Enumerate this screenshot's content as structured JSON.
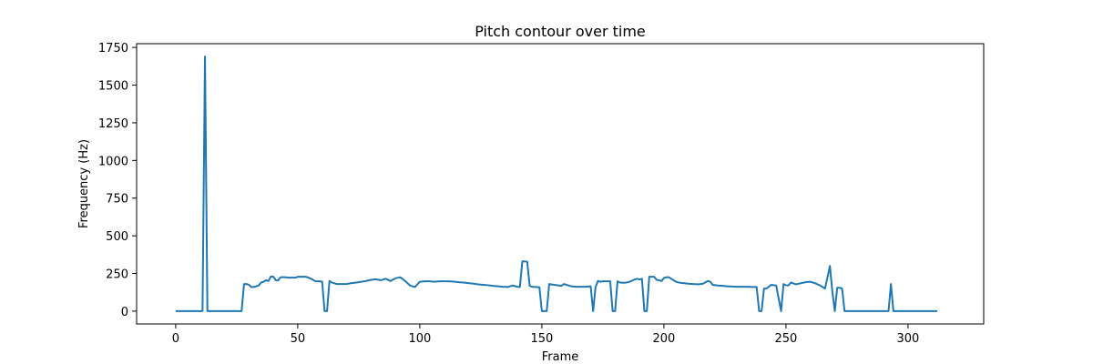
{
  "chart_data": {
    "type": "line",
    "title": "Pitch contour over time",
    "xlabel": "Frame",
    "ylabel": "Frequency (Hz)",
    "xlim": [
      -16,
      331
    ],
    "ylim": [
      -85,
      1775
    ],
    "xticks": [
      0,
      50,
      100,
      150,
      200,
      250,
      300
    ],
    "yticks": [
      0,
      250,
      500,
      750,
      1000,
      1250,
      1500,
      1750
    ],
    "grid": false,
    "series": [
      {
        "color": "#1f77b4",
        "x": [
          0,
          11,
          12,
          13,
          14,
          27,
          28,
          29,
          30,
          31,
          32,
          33,
          34,
          35,
          36,
          37,
          38,
          39,
          40,
          41,
          42,
          43,
          44,
          45,
          46,
          47,
          48,
          49,
          50,
          51,
          52,
          53,
          54,
          55,
          56,
          57,
          58,
          59,
          60,
          61,
          62,
          63,
          64,
          65,
          66,
          67,
          68,
          69,
          70,
          72,
          74,
          76,
          78,
          80,
          82,
          84,
          86,
          88,
          90,
          92,
          94,
          96,
          98,
          100,
          102,
          104,
          106,
          108,
          110,
          112,
          114,
          116,
          118,
          120,
          122,
          124,
          126,
          128,
          130,
          132,
          134,
          136,
          138,
          140,
          141,
          142,
          143,
          144,
          145,
          146,
          147,
          148,
          149,
          150,
          151,
          152,
          153,
          155,
          157,
          158,
          159,
          160,
          162,
          164,
          166,
          168,
          170,
          171,
          172,
          173,
          174,
          175,
          176,
          178,
          179,
          180,
          181,
          182,
          184,
          186,
          188,
          189,
          190,
          191,
          192,
          193,
          194,
          195,
          196,
          197,
          198,
          199,
          200,
          201,
          202,
          203,
          204,
          205,
          206,
          208,
          210,
          212,
          214,
          216,
          218,
          219,
          220,
          222,
          224,
          226,
          228,
          230,
          232,
          234,
          236,
          238,
          239,
          240,
          241,
          242,
          244,
          246,
          248,
          249,
          250,
          251,
          252,
          254,
          256,
          258,
          260,
          262,
          264,
          266,
          268,
          269,
          270,
          271,
          272,
          273,
          274,
          275,
          280,
          290,
          292,
          293,
          294,
          300,
          312
        ],
        "y": [
          0,
          0,
          1690,
          0,
          0,
          0,
          180,
          180,
          175,
          160,
          160,
          165,
          170,
          190,
          195,
          205,
          200,
          230,
          228,
          205,
          205,
          225,
          225,
          225,
          222,
          222,
          222,
          222,
          228,
          228,
          228,
          228,
          225,
          218,
          210,
          200,
          198,
          198,
          196,
          0,
          0,
          200,
          190,
          185,
          180,
          180,
          180,
          180,
          180,
          186,
          190,
          195,
          200,
          208,
          212,
          205,
          215,
          200,
          218,
          225,
          200,
          170,
          160,
          195,
          198,
          198,
          195,
          198,
          198,
          198,
          196,
          192,
          190,
          186,
          182,
          178,
          175,
          172,
          168,
          165,
          162,
          160,
          170,
          162,
          160,
          330,
          330,
          328,
          168,
          162,
          160,
          160,
          158,
          0,
          0,
          0,
          180,
          175,
          170,
          168,
          180,
          175,
          165,
          162,
          162,
          162,
          165,
          0,
          160,
          200,
          195,
          198,
          198,
          198,
          0,
          0,
          198,
          190,
          188,
          195,
          210,
          215,
          210,
          215,
          0,
          0,
          228,
          228,
          228,
          208,
          205,
          200,
          220,
          225,
          225,
          215,
          205,
          195,
          190,
          186,
          182,
          180,
          178,
          182,
          200,
          195,
          175,
          170,
          168,
          165,
          163,
          162,
          162,
          162,
          160,
          160,
          0,
          0,
          150,
          150,
          175,
          170,
          0,
          180,
          172,
          170,
          190,
          178,
          185,
          192,
          195,
          185,
          170,
          150,
          300,
          130,
          0,
          155,
          155,
          150,
          0,
          0,
          0,
          0,
          0,
          180,
          0,
          0,
          0
        ]
      }
    ]
  }
}
